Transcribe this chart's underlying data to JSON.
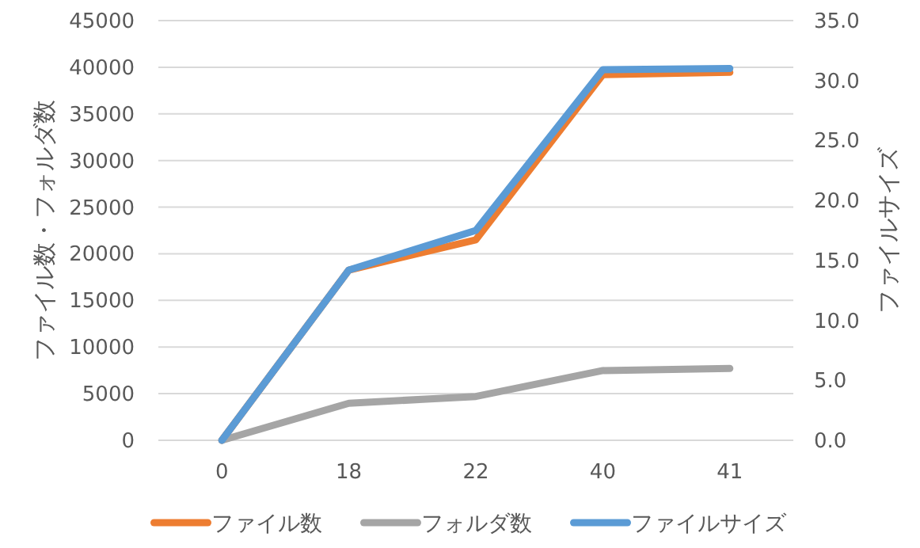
{
  "chart_data": {
    "type": "line",
    "ylabel": "ファイル数・フォルダ数",
    "y2label": "ファイルサイズ",
    "categories": [
      "0",
      "18",
      "22",
      "40",
      "41"
    ],
    "series": [
      {
        "name": "ファイル数",
        "color": "#ed7d31",
        "values": [
          0,
          18250,
          21500,
          39200,
          39450
        ]
      },
      {
        "name": "フォルダ数",
        "color": "#a5a5a5",
        "values": [
          0,
          3970,
          4700,
          7480,
          7700
        ]
      },
      {
        "name": "ファイルサイズ",
        "color": "#5b9bd5",
        "axis": "y2",
        "values": [
          0,
          14.2,
          17.5,
          30.9,
          31.0
        ]
      }
    ],
    "ylim": [
      0,
      45000
    ],
    "yticks": [
      0,
      5000,
      10000,
      15000,
      20000,
      25000,
      30000,
      35000,
      40000,
      45000
    ],
    "y2lim": [
      0,
      35
    ],
    "y2ticks": [
      {
        "value": 0,
        "label": "0.0"
      },
      {
        "value": 5,
        "label": "5.0"
      },
      {
        "value": 10,
        "label": "10.0"
      },
      {
        "value": 15,
        "label": "15.0"
      },
      {
        "value": 20,
        "label": "20.0"
      },
      {
        "value": 25,
        "label": "25.0"
      },
      {
        "value": 30,
        "label": "30.0"
      },
      {
        "value": 35,
        "label": "35.0"
      }
    ],
    "grid": "y",
    "legend": "bottom",
    "marker": "none",
    "line_style": "solid"
  }
}
